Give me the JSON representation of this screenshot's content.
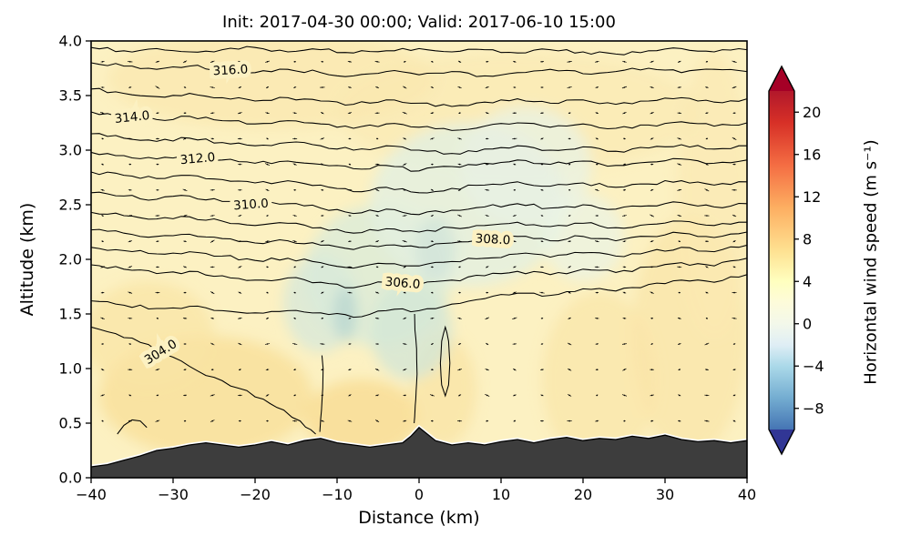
{
  "title": "Init: 2017-04-30 00:00; Valid: 2017-06-10 15:00",
  "axes": {
    "xlabel": "Distance (km)",
    "ylabel": "Altitude (km)",
    "x_ticks": [
      {
        "v": -40,
        "label": "−40"
      },
      {
        "v": -30,
        "label": "−30"
      },
      {
        "v": -20,
        "label": "−20"
      },
      {
        "v": -10,
        "label": "−10"
      },
      {
        "v": 0,
        "label": "0"
      },
      {
        "v": 10,
        "label": "10"
      },
      {
        "v": 20,
        "label": "20"
      },
      {
        "v": 30,
        "label": "30"
      },
      {
        "v": 40,
        "label": "40"
      }
    ],
    "y_ticks": [
      {
        "v": 0.0,
        "label": "0.0"
      },
      {
        "v": 0.5,
        "label": "0.5"
      },
      {
        "v": 1.0,
        "label": "1.0"
      },
      {
        "v": 1.5,
        "label": "1.5"
      },
      {
        "v": 2.0,
        "label": "2.0"
      },
      {
        "v": 2.5,
        "label": "2.5"
      },
      {
        "v": 3.0,
        "label": "3.0"
      },
      {
        "v": 3.5,
        "label": "3.5"
      },
      {
        "v": 4.0,
        "label": "4.0"
      }
    ]
  },
  "colorbar": {
    "label": "Horizontal wind speed (m s⁻¹)",
    "range": [
      -10,
      22
    ],
    "ticks": [
      {
        "v": 20,
        "label": "20"
      },
      {
        "v": 16,
        "label": "16"
      },
      {
        "v": 12,
        "label": "12"
      },
      {
        "v": 8,
        "label": "8"
      },
      {
        "v": 4,
        "label": "4"
      },
      {
        "v": 0,
        "label": "0"
      },
      {
        "v": -4,
        "label": "−4"
      },
      {
        "v": -8,
        "label": "−8"
      }
    ],
    "stops": [
      [
        22,
        "#b2182b"
      ],
      [
        19,
        "#d73027"
      ],
      [
        15,
        "#f46d43"
      ],
      [
        11,
        "#fdae61"
      ],
      [
        7,
        "#fee090"
      ],
      [
        4,
        "#ffffbf"
      ],
      [
        2,
        "#fdfbda"
      ],
      [
        0,
        "#f3f8ea"
      ],
      [
        -2,
        "#dfeef5"
      ],
      [
        -4,
        "#abd9e9"
      ],
      [
        -7,
        "#74add1"
      ],
      [
        -10,
        "#4575b4"
      ]
    ],
    "over_color": "#a50026",
    "under_color": "#313695"
  },
  "chart_data": {
    "type": "contour",
    "title": "Init: 2017-04-30 00:00; Valid: 2017-06-10 15:00",
    "xlabel": "Distance (km)",
    "ylabel": "Altitude (km)",
    "x_range": [
      -40,
      40
    ],
    "y_range": [
      0,
      4
    ],
    "fill_variable": "horizontal wind speed (m s-1), mostly 0 to 4 with weak negative pockets aloft",
    "line_variable": "potential temperature (K), contour interval 1 K, labeled every 2 K",
    "base_fill": "#fcf1c2",
    "terrain_color": "#3d3d3d",
    "contour_x": [
      -40,
      -36,
      -32,
      -28,
      -24,
      -20,
      -16,
      -12,
      -8,
      -4,
      0,
      4,
      8,
      12,
      16,
      20,
      24,
      28,
      32,
      36,
      40
    ],
    "isotherms": [
      {
        "level": 317,
        "alts": [
          3.94,
          3.91,
          3.93,
          3.9,
          3.92,
          3.94,
          3.9,
          3.92,
          3.89,
          3.91,
          3.93,
          3.9,
          3.92,
          3.89,
          3.92,
          3.9,
          3.88,
          3.91,
          3.93,
          3.9,
          3.92
        ]
      },
      {
        "level": 316,
        "label": "316.0",
        "label_at": [
          -23,
          3.73
        ],
        "rot": -3,
        "alts": [
          3.8,
          3.77,
          3.74,
          3.77,
          3.74,
          3.71,
          3.74,
          3.71,
          3.68,
          3.72,
          3.69,
          3.72,
          3.68,
          3.71,
          3.74,
          3.7,
          3.72,
          3.75,
          3.71,
          3.74,
          3.72
        ]
      },
      {
        "level": 315,
        "alts": [
          3.56,
          3.52,
          3.49,
          3.52,
          3.48,
          3.45,
          3.48,
          3.45,
          3.42,
          3.46,
          3.43,
          3.4,
          3.44,
          3.47,
          3.43,
          3.46,
          3.42,
          3.45,
          3.48,
          3.44,
          3.47
        ]
      },
      {
        "level": 314,
        "label": "314.0",
        "label_at": [
          -35,
          3.3
        ],
        "rot": -6,
        "alts": [
          3.35,
          3.31,
          3.28,
          3.31,
          3.27,
          3.24,
          3.27,
          3.24,
          3.2,
          3.24,
          3.21,
          3.18,
          3.22,
          3.25,
          3.21,
          3.24,
          3.2,
          3.23,
          3.26,
          3.22,
          3.25
        ]
      },
      {
        "level": 313,
        "alts": [
          3.15,
          3.11,
          3.08,
          3.11,
          3.07,
          3.04,
          3.07,
          3.04,
          3.0,
          3.04,
          3.0,
          2.97,
          3.01,
          3.04,
          3.0,
          3.03,
          2.99,
          3.02,
          3.05,
          3.01,
          3.04
        ]
      },
      {
        "level": 312,
        "label": "312.0",
        "label_at": [
          -27,
          2.92
        ],
        "rot": -5,
        "alts": [
          2.98,
          2.95,
          2.92,
          2.95,
          2.91,
          2.88,
          2.9,
          2.87,
          2.83,
          2.86,
          2.81,
          2.85,
          2.88,
          2.91,
          2.87,
          2.9,
          2.86,
          2.89,
          2.92,
          2.88,
          2.91
        ]
      },
      {
        "level": 311,
        "alts": [
          2.8,
          2.77,
          2.74,
          2.77,
          2.73,
          2.7,
          2.72,
          2.68,
          2.62,
          2.66,
          2.61,
          2.65,
          2.68,
          2.71,
          2.67,
          2.7,
          2.66,
          2.69,
          2.72,
          2.68,
          2.71
        ]
      },
      {
        "level": 310,
        "label": "310.0",
        "label_at": [
          -20.5,
          2.5
        ],
        "rot": -4,
        "alts": [
          2.61,
          2.58,
          2.55,
          2.58,
          2.53,
          2.5,
          2.51,
          2.47,
          2.42,
          2.46,
          2.41,
          2.45,
          2.48,
          2.51,
          2.47,
          2.5,
          2.46,
          2.49,
          2.52,
          2.48,
          2.51
        ]
      },
      {
        "level": 309,
        "alts": [
          2.43,
          2.4,
          2.37,
          2.39,
          2.35,
          2.31,
          2.33,
          2.29,
          2.24,
          2.28,
          2.25,
          2.29,
          2.31,
          2.34,
          2.3,
          2.33,
          2.29,
          2.32,
          2.35,
          2.31,
          2.34
        ]
      },
      {
        "level": 308,
        "label": "308.0",
        "label_at": [
          9,
          2.18
        ],
        "rot": 3,
        "alts": [
          2.27,
          2.24,
          2.21,
          2.23,
          2.19,
          2.15,
          2.17,
          2.13,
          2.09,
          2.13,
          2.11,
          2.15,
          2.17,
          2.21,
          2.17,
          2.21,
          2.17,
          2.21,
          2.24,
          2.2,
          2.25
        ]
      },
      {
        "level": 307,
        "alts": [
          2.11,
          2.08,
          2.05,
          2.07,
          2.03,
          1.99,
          2.01,
          1.97,
          1.92,
          1.96,
          1.94,
          1.98,
          2.01,
          2.05,
          2.02,
          2.06,
          2.03,
          2.07,
          2.11,
          2.07,
          2.13
        ]
      },
      {
        "level": 306,
        "label": "306.0",
        "label_at": [
          -2,
          1.78
        ],
        "rot": 5,
        "alts": [
          1.95,
          1.91,
          1.87,
          1.89,
          1.85,
          1.81,
          1.83,
          1.79,
          1.74,
          1.79,
          1.77,
          1.81,
          1.85,
          1.89,
          1.86,
          1.91,
          1.88,
          1.93,
          1.97,
          1.94,
          2.01
        ]
      },
      {
        "level": 305,
        "alts": [
          1.62,
          1.58,
          1.55,
          1.57,
          1.53,
          1.51,
          1.53,
          1.51,
          1.47,
          1.53,
          1.53,
          1.59,
          1.64,
          1.69,
          1.67,
          1.73,
          1.71,
          1.77,
          1.81,
          1.79,
          1.86
        ]
      },
      {
        "level": 304,
        "label": "304.0",
        "label_at": [
          -31.5,
          1.15
        ],
        "rot": -32,
        "points": [
          [
            -40,
            1.38
          ],
          [
            -37,
            1.32
          ],
          [
            -34,
            1.24
          ],
          [
            -31,
            1.13
          ],
          [
            -28,
            1.02
          ],
          [
            -25,
            0.92
          ],
          [
            -22,
            0.82
          ],
          [
            -19,
            0.72
          ],
          [
            -16.5,
            0.62
          ],
          [
            -14.5,
            0.52
          ],
          [
            -13.2,
            0.44
          ],
          [
            -12.6,
            0.4
          ]
        ]
      },
      {
        "level": 304,
        "points": [
          [
            -36.8,
            0.4
          ],
          [
            -36,
            0.48
          ],
          [
            -35,
            0.53
          ],
          [
            -34,
            0.52
          ],
          [
            -33.2,
            0.46
          ]
        ]
      },
      {
        "level": 304,
        "points": [
          [
            -12.1,
            0.42
          ],
          [
            -11.9,
            0.62
          ],
          [
            -11.75,
            0.82
          ],
          [
            -11.7,
            1.0
          ],
          [
            -11.85,
            1.12
          ]
        ]
      },
      {
        "level": 304,
        "points": [
          [
            -0.6,
            0.5
          ],
          [
            -0.4,
            0.72
          ],
          [
            -0.25,
            0.95
          ],
          [
            -0.3,
            1.18
          ],
          [
            -0.5,
            1.35
          ],
          [
            -0.55,
            1.5
          ]
        ]
      },
      {
        "level": 304,
        "closed": true,
        "points": [
          [
            3.2,
            1.38
          ],
          [
            2.75,
            1.25
          ],
          [
            2.6,
            1.05
          ],
          [
            2.75,
            0.85
          ],
          [
            3.2,
            0.75
          ],
          [
            3.6,
            0.85
          ],
          [
            3.75,
            1.05
          ],
          [
            3.6,
            1.25
          ]
        ]
      }
    ],
    "terrain_profile": [
      [
        -40,
        0.1
      ],
      [
        -38,
        0.12
      ],
      [
        -36,
        0.16
      ],
      [
        -34,
        0.2
      ],
      [
        -32,
        0.25
      ],
      [
        -30,
        0.27
      ],
      [
        -28,
        0.3
      ],
      [
        -26,
        0.32
      ],
      [
        -24,
        0.3
      ],
      [
        -22,
        0.28
      ],
      [
        -20,
        0.3
      ],
      [
        -18,
        0.33
      ],
      [
        -16,
        0.3
      ],
      [
        -14,
        0.34
      ],
      [
        -12,
        0.36
      ],
      [
        -10,
        0.32
      ],
      [
        -8,
        0.3
      ],
      [
        -6,
        0.28
      ],
      [
        -4,
        0.3
      ],
      [
        -2,
        0.32
      ],
      [
        -1,
        0.38
      ],
      [
        0,
        0.46
      ],
      [
        1,
        0.4
      ],
      [
        2,
        0.34
      ],
      [
        4,
        0.3
      ],
      [
        6,
        0.32
      ],
      [
        8,
        0.3
      ],
      [
        10,
        0.33
      ],
      [
        12,
        0.35
      ],
      [
        14,
        0.32
      ],
      [
        16,
        0.35
      ],
      [
        18,
        0.37
      ],
      [
        20,
        0.34
      ],
      [
        22,
        0.36
      ],
      [
        24,
        0.35
      ],
      [
        26,
        0.38
      ],
      [
        28,
        0.36
      ],
      [
        30,
        0.39
      ],
      [
        32,
        0.35
      ],
      [
        34,
        0.33
      ],
      [
        36,
        0.34
      ],
      [
        38,
        0.32
      ],
      [
        40,
        0.34
      ]
    ],
    "shading_patches": [
      [
        -26,
        0.75,
        13,
        0.55,
        "#f8e09c",
        0.85
      ],
      [
        -33,
        1.3,
        8,
        0.5,
        "#f9e4a4",
        0.7
      ],
      [
        -7,
        0.55,
        7,
        0.35,
        "#f7dc94",
        0.8
      ],
      [
        3,
        0.8,
        4,
        0.5,
        "#f9e2a2",
        0.7
      ],
      [
        22,
        0.9,
        7,
        0.8,
        "#fae6aa",
        0.75
      ],
      [
        33,
        1.3,
        7,
        1.1,
        "#f9e4a6",
        0.7
      ],
      [
        36,
        2.6,
        4.5,
        1.3,
        "#fae8b0",
        0.65
      ],
      [
        -18,
        3.65,
        20,
        0.45,
        "#fae6aa",
        0.6
      ],
      [
        12,
        3.35,
        22,
        0.55,
        "#fae8ae",
        0.55
      ],
      [
        -5,
        1.85,
        9,
        0.65,
        "#dfecd6",
        0.9
      ],
      [
        6,
        2.5,
        12,
        0.75,
        "#e4f0df",
        0.85
      ],
      [
        -1,
        1.35,
        5,
        0.45,
        "#d3e6d6",
        0.8
      ],
      [
        -12,
        1.6,
        4.5,
        0.45,
        "#d8e8da",
        0.8
      ],
      [
        13,
        2.85,
        8,
        0.55,
        "#e8f2e4",
        0.75
      ],
      [
        -9,
        1.5,
        1.5,
        0.25,
        "#bfdad2",
        0.9
      ],
      [
        2,
        2.1,
        2.5,
        0.3,
        "#d2e5da",
        0.8
      ],
      [
        20,
        2.2,
        5,
        0.4,
        "#eaf3e6",
        0.7
      ]
    ],
    "wind_markers": {
      "type": "quiver",
      "x_start": -38.6,
      "x_step": 3.35,
      "cols": 24,
      "alt_start": 0.52,
      "alt_step": 0.235,
      "rows": 15,
      "color": "#000000"
    }
  }
}
